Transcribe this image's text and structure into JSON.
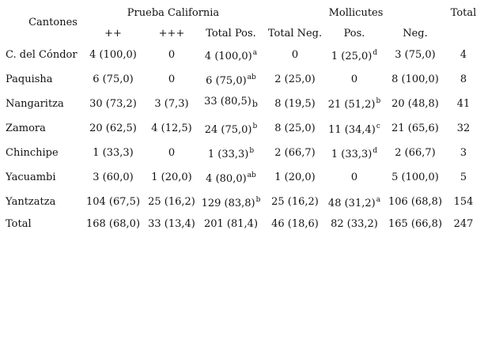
{
  "header": {
    "cantones": "Cantones",
    "prueba_california": "Prueba California",
    "mollicutes": "Mollicutes",
    "total": "Total",
    "pp": "++",
    "ppp": "+++",
    "total_pos": "Total Pos.",
    "total_neg": "Total Neg.",
    "pos": "Pos.",
    "neg": "Neg."
  },
  "rows": [
    {
      "canton": "C. del Cóndor",
      "pp": "4 (100,0)",
      "ppp": "0",
      "total_pos": "4 (100,0)",
      "total_pos_sup": "a",
      "total_neg": "0",
      "moll_pos": "1 (25,0)",
      "moll_pos_sup": "d",
      "moll_neg": "3 (75,0)",
      "total": "4"
    },
    {
      "canton": "Paquisha",
      "pp": "6 (75,0)",
      "ppp": "0",
      "total_pos": "6 (75,0)",
      "total_pos_sup": "ab",
      "total_neg": "2 (25,0)",
      "moll_pos": "0",
      "moll_pos_sup": "",
      "moll_neg": "8 (100,0)",
      "total": "8"
    },
    {
      "canton": "Nangaritza",
      "pp": "30 (73,2)",
      "ppp": "3 (7,3)",
      "total_pos": "33 (80,5)",
      "total_pos_sub": "b",
      "total_neg": "8 (19,5)",
      "moll_pos": "21 (51,2)",
      "moll_pos_sup": "b",
      "moll_neg": "20 (48,8)",
      "total": "41"
    },
    {
      "canton": "Zamora",
      "pp": "20 (62,5)",
      "ppp": "4 (12,5)",
      "total_pos": "24 (75,0)",
      "total_pos_sup": "b",
      "total_neg": "8 (25,0)",
      "moll_pos": "11 (34,4)",
      "moll_pos_sup": "c",
      "moll_neg": "21 (65,6)",
      "total": "32"
    },
    {
      "canton": "Chinchipe",
      "pp": "1 (33,3)",
      "ppp": "0",
      "total_pos": "1 (33,3)",
      "total_pos_sup": "b",
      "total_neg": "2 (66,7)",
      "moll_pos": "1 (33,3)",
      "moll_pos_sup": "d",
      "moll_neg": "2 (66,7)",
      "total": "3"
    },
    {
      "canton": "Yacuambi",
      "pp": "3 (60,0)",
      "ppp": "1 (20,0)",
      "total_pos": "4 (80,0)",
      "total_pos_sup": "ab",
      "total_neg": "1 (20,0)",
      "moll_pos": "0",
      "moll_pos_sup": "",
      "moll_neg": "5 (100,0)",
      "total": "5"
    },
    {
      "canton": "Yantzatza",
      "pp": "104 (67,5)",
      "ppp": "25 (16,2)",
      "total_pos": "129 (83,8)",
      "total_pos_sup": "b",
      "total_neg": "25 (16,2)",
      "moll_pos": "48 (31,2)",
      "moll_pos_sup": "a",
      "moll_neg": "106 (68,8)",
      "total": "154"
    },
    {
      "canton": "Total",
      "pp": "168 (68,0)",
      "ppp": "33 (13,4)",
      "total_pos": "201 (81,4)",
      "total_pos_sup": "",
      "total_neg": "46 (18,6)",
      "moll_pos": "82 (33,2)",
      "moll_pos_sup": "",
      "moll_neg": "165 (66,8)",
      "total": "247"
    }
  ]
}
